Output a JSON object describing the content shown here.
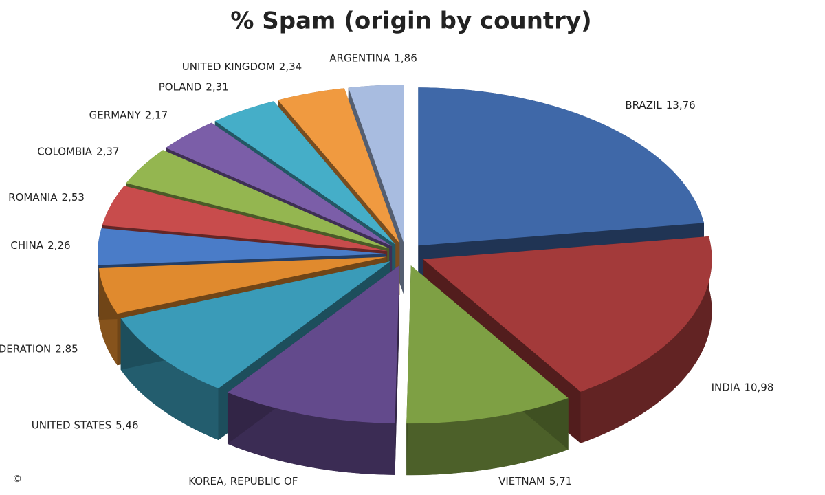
{
  "chart_data": {
    "type": "pie",
    "title": "% Spam (origin by country)",
    "copyright": "©",
    "categories": [
      "BRAZIL",
      "INDIA",
      "VIETNAM",
      "KOREA, REPUBLIC OF",
      "UNITED STATES",
      "N FEDERATION",
      "CHINA",
      "ROMANIA",
      "COLOMBIA",
      "GERMANY",
      "POLAND",
      "UNITED KINGDOM",
      "ARGENTINA"
    ],
    "values": [
      13.76,
      10.98,
      5.71,
      6.0,
      5.46,
      2.85,
      2.26,
      2.53,
      2.37,
      2.17,
      2.31,
      2.34,
      1.86
    ],
    "value_labels": [
      "13,76",
      "10,98",
      "5,71",
      null,
      "5,46",
      "2,85",
      "2,26",
      "2,53",
      "2,37",
      "2,17",
      "2,31",
      "2,34",
      "1,86"
    ],
    "colors": [
      "#3f68a8",
      "#a33a3a",
      "#7ea044",
      "#634a8c",
      "#3a9bb8",
      "#e08a2e",
      "#4a7cc8",
      "#c84c4c",
      "#94b650",
      "#7b5ea8",
      "#45aec8",
      "#f09a40",
      "#a8bce0"
    ]
  }
}
